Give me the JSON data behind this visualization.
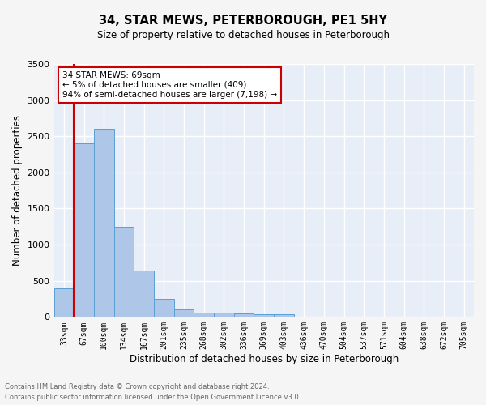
{
  "title": "34, STAR MEWS, PETERBOROUGH, PE1 5HY",
  "subtitle": "Size of property relative to detached houses in Peterborough",
  "xlabel": "Distribution of detached houses by size in Peterborough",
  "ylabel": "Number of detached properties",
  "footnote1": "Contains HM Land Registry data © Crown copyright and database right 2024.",
  "footnote2": "Contains public sector information licensed under the Open Government Licence v3.0.",
  "annotation_title": "34 STAR MEWS: 69sqm",
  "annotation_line2": "← 5% of detached houses are smaller (409)",
  "annotation_line3": "94% of semi-detached houses are larger (7,198) →",
  "bar_color": "#aec6e8",
  "bar_edge_color": "#5a9fd4",
  "background_color": "#e8eef8",
  "fig_background_color": "#f5f5f5",
  "grid_color": "#ffffff",
  "vline_color": "#cc0000",
  "categories": [
    "33sqm",
    "67sqm",
    "100sqm",
    "134sqm",
    "167sqm",
    "201sqm",
    "235sqm",
    "268sqm",
    "302sqm",
    "336sqm",
    "369sqm",
    "403sqm",
    "436sqm",
    "470sqm",
    "504sqm",
    "537sqm",
    "571sqm",
    "604sqm",
    "638sqm",
    "672sqm",
    "705sqm"
  ],
  "values": [
    400,
    2400,
    2600,
    1250,
    640,
    250,
    105,
    65,
    60,
    50,
    35,
    35,
    0,
    0,
    0,
    0,
    0,
    0,
    0,
    0,
    0
  ],
  "ylim": [
    0,
    3500
  ],
  "yticks": [
    0,
    500,
    1000,
    1500,
    2000,
    2500,
    3000,
    3500
  ]
}
